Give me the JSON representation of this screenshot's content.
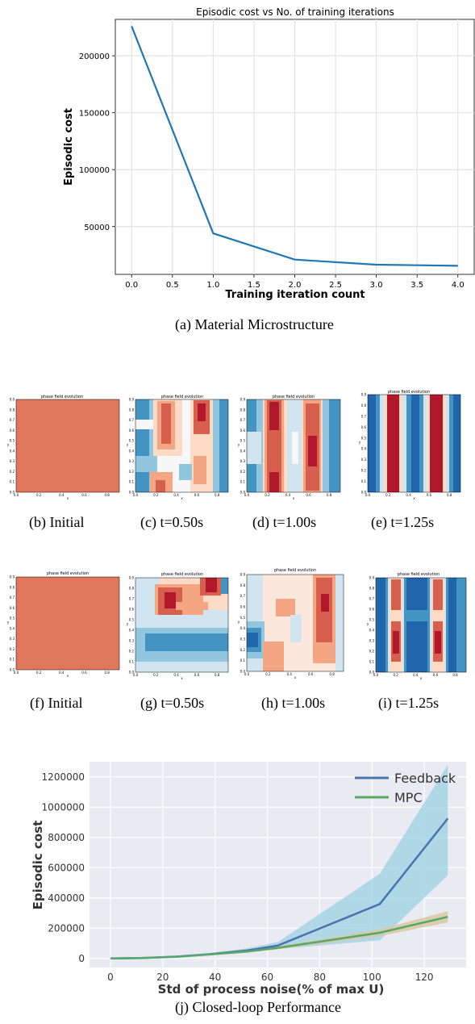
{
  "captions": {
    "a": "(a) Material Microstructure",
    "b": "(b) Initial",
    "c": "(c) t=0.50s",
    "d": "(d) t=1.00s",
    "e": "(e) t=1.25s",
    "f": "(f) Initial",
    "g": "(g) t=0.50s",
    "h": "(h) t=1.00s",
    "i": "(i) t=1.25s",
    "j": "(j) Closed-loop Performance"
  },
  "chart_data": [
    {
      "type": "line",
      "title": "Episodic cost vs No. of training iterations",
      "xlabel": "Training iteration count",
      "ylabel": "Episodic cost",
      "x": [
        0,
        1,
        2,
        3,
        4
      ],
      "values": [
        226000,
        44000,
        21000,
        16500,
        15500
      ],
      "xlim": [
        -0.2,
        4.2
      ],
      "ylim": [
        8000,
        232000
      ],
      "xticks": [
        0.0,
        0.5,
        1.0,
        1.5,
        2.0,
        2.5,
        3.0,
        3.5,
        4.0
      ],
      "xtick_labels": [
        "0.0",
        "0.5",
        "1.0",
        "1.5",
        "2.0",
        "2.5",
        "3.0",
        "3.5",
        "4.0"
      ],
      "yticks": [
        50000,
        100000,
        150000,
        200000
      ],
      "ytick_labels": [
        "50000",
        "100000",
        "150000",
        "200000"
      ],
      "grid": true,
      "color": "#1f77b4"
    },
    {
      "type": "heatmap",
      "panels_title": "phase field evolution",
      "axis_x_label": "x",
      "axis_y_label": "y",
      "xtick_labels": [
        "0.0",
        "0.2",
        "0.4",
        "0.6",
        "0.8"
      ],
      "ytick_labels": [
        "0.0",
        "0.1",
        "0.2",
        "0.3",
        "0.4",
        "0.5",
        "0.6",
        "0.7",
        "0.8",
        "0.9"
      ],
      "colormap": [
        "#053061",
        "#2166ac",
        "#4393c3",
        "#92c5de",
        "#d1e5f0",
        "#f7f7f7",
        "#fddbc7",
        "#f4a582",
        "#d6604d",
        "#b2182b",
        "#67001f"
      ],
      "uniform_color": "#e0775c",
      "panels": [
        "b",
        "c",
        "d",
        "e",
        "f",
        "g",
        "h",
        "i"
      ]
    },
    {
      "type": "line",
      "xlabel": "Std of process noise(% of max U)",
      "ylabel": "Episodic cost",
      "x": [
        0,
        12,
        25,
        38,
        52,
        64,
        103,
        129
      ],
      "series": [
        {
          "name": "Feedback",
          "color": "#4c72b0",
          "band_color": "#a6d3e4",
          "values": [
            0,
            3000,
            12000,
            28000,
            52000,
            85000,
            360000,
            925000
          ],
          "lower": [
            0,
            2000,
            9000,
            20000,
            38000,
            62000,
            120000,
            550000
          ],
          "upper": [
            0,
            4000,
            15000,
            36000,
            66000,
            108000,
            560000,
            1280000
          ]
        },
        {
          "name": "MPC",
          "color": "#55a868",
          "band_color": "#d8c9a0",
          "values": [
            0,
            3000,
            11000,
            27000,
            45000,
            70000,
            170000,
            275000
          ],
          "lower": [
            0,
            2000,
            9000,
            22000,
            38000,
            60000,
            148000,
            238000
          ],
          "upper": [
            0,
            4000,
            13000,
            31000,
            52000,
            80000,
            192000,
            312000
          ]
        }
      ],
      "xlim": [
        -8,
        136
      ],
      "ylim": [
        -60000,
        1300000
      ],
      "xticks": [
        0,
        20,
        40,
        60,
        80,
        100,
        120
      ],
      "xtick_labels": [
        "0",
        "20",
        "40",
        "60",
        "80",
        "100",
        "120"
      ],
      "yticks": [
        0,
        200000,
        400000,
        600000,
        800000,
        1000000,
        1200000
      ],
      "ytick_labels": [
        "0",
        "200000",
        "400000",
        "600000",
        "800000",
        "1000000",
        "1200000"
      ],
      "grid": true,
      "background": "#eaeaf2",
      "legend_position": "top-right"
    }
  ]
}
